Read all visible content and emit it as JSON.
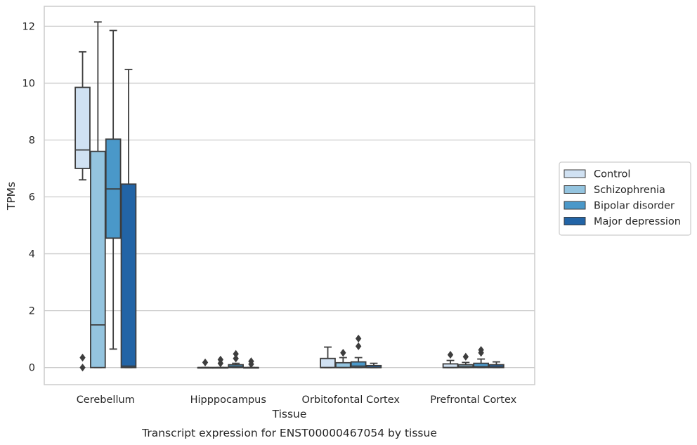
{
  "caption": "Transcript expression for ENST00000467054 by tissue",
  "chart_data": {
    "type": "boxplot",
    "title": "",
    "xlabel": "Tissue",
    "ylabel": "TPMs",
    "ylim": [
      -0.6,
      12.7
    ],
    "yticks": [
      0,
      2,
      4,
      6,
      8,
      10,
      12
    ],
    "grid": "horizontal",
    "legend_position": "right",
    "categories": [
      "Cerebellum",
      "Hipppocampus",
      "Orbitofontal Cortex",
      "Prefrontal Cortex"
    ],
    "series": [
      {
        "name": "Control",
        "color": "#d0e1f2",
        "boxes": [
          {
            "whisker_low": 6.6,
            "q1": 7.0,
            "median": 7.65,
            "q3": 9.85,
            "whisker_high": 11.1,
            "outliers": [
              0.35,
              0.0
            ]
          },
          {
            "whisker_low": 0.0,
            "q1": 0.0,
            "median": 0.0,
            "q3": 0.0,
            "whisker_high": 0.0,
            "outliers": [
              0.18
            ]
          },
          {
            "whisker_low": 0.0,
            "q1": 0.0,
            "median": 0.0,
            "q3": 0.32,
            "whisker_high": 0.72,
            "outliers": []
          },
          {
            "whisker_low": 0.0,
            "q1": 0.0,
            "median": 0.0,
            "q3": 0.13,
            "whisker_high": 0.25,
            "outliers": [
              0.45
            ]
          }
        ]
      },
      {
        "name": "Schizophrenia",
        "color": "#94c4df",
        "boxes": [
          {
            "whisker_low": 0.0,
            "q1": 0.0,
            "median": 1.5,
            "q3": 7.6,
            "whisker_high": 12.15,
            "outliers": []
          },
          {
            "whisker_low": 0.0,
            "q1": 0.0,
            "median": 0.0,
            "q3": 0.0,
            "whisker_high": 0.0,
            "outliers": [
              0.28,
              0.15
            ]
          },
          {
            "whisker_low": 0.0,
            "q1": 0.0,
            "median": 0.0,
            "q3": 0.17,
            "whisker_high": 0.35,
            "outliers": [
              0.52
            ]
          },
          {
            "whisker_low": 0.0,
            "q1": 0.0,
            "median": 0.03,
            "q3": 0.1,
            "whisker_high": 0.18,
            "outliers": [
              0.38
            ]
          }
        ]
      },
      {
        "name": "Bipolar disorder",
        "color": "#4a98c9",
        "boxes": [
          {
            "whisker_low": 0.65,
            "q1": 4.55,
            "median": 6.28,
            "q3": 8.03,
            "whisker_high": 11.85,
            "outliers": []
          },
          {
            "whisker_low": 0.0,
            "q1": 0.0,
            "median": 0.03,
            "q3": 0.1,
            "whisker_high": 0.15,
            "outliers": [
              0.48,
              0.32
            ]
          },
          {
            "whisker_low": 0.0,
            "q1": 0.0,
            "median": 0.05,
            "q3": 0.2,
            "whisker_high": 0.35,
            "outliers": [
              1.02,
              0.75
            ]
          },
          {
            "whisker_low": 0.0,
            "q1": 0.0,
            "median": 0.03,
            "q3": 0.15,
            "whisker_high": 0.3,
            "outliers": [
              0.62,
              0.52
            ]
          }
        ]
      },
      {
        "name": "Major depression",
        "color": "#2264a6",
        "boxes": [
          {
            "whisker_low": 0.0,
            "q1": 0.0,
            "median": 0.05,
            "q3": 6.45,
            "whisker_high": 10.48,
            "outliers": []
          },
          {
            "whisker_low": 0.0,
            "q1": 0.0,
            "median": 0.0,
            "q3": 0.0,
            "whisker_high": 0.0,
            "outliers": [
              0.22,
              0.12
            ]
          },
          {
            "whisker_low": 0.0,
            "q1": 0.0,
            "median": 0.0,
            "q3": 0.07,
            "whisker_high": 0.15,
            "outliers": []
          },
          {
            "whisker_low": 0.0,
            "q1": 0.0,
            "median": 0.02,
            "q3": 0.1,
            "whisker_high": 0.2,
            "outliers": []
          }
        ]
      }
    ]
  }
}
